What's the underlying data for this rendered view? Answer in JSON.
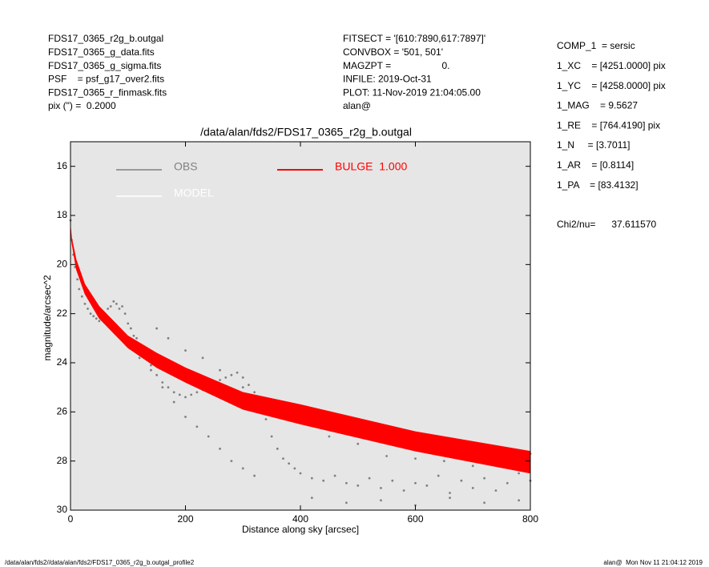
{
  "header_left": [
    "FDS17_0365_r2g_b.outgal",
    "FDS17_0365_g_data.fits",
    "FDS17_0365_g_sigma.fits",
    "PSF    = psf_g17_over2.fits",
    "FDS17_0365_r_finmask.fits",
    "pix (\") =  0.2000"
  ],
  "header_mid": [
    "FITSECT = '[610:7890,617:7897]'",
    "CONVBOX = '501, 501'",
    "MAGZPT =                   0.",
    "INFILE: 2019-Oct-31",
    "PLOT: 11-Nov-2019 21:04:05.00",
    "alan@"
  ],
  "params": [
    "COMP_1  = sersic",
    "1_XC    = [4251.0000] pix",
    "1_YC    = [4258.0000] pix",
    "1_MAG    = 9.5627",
    "1_RE    = [764.4190] pix",
    "1_N     = [3.7011]",
    "1_AR    = [0.8114]",
    "1_PA    = [83.4132]"
  ],
  "chi": "Chi2/nu=      37.611570",
  "footer_left": "/data/alan/fds2//data/alan/fds2/FDS17_0365_r2g_b.outgal_profile2",
  "footer_right": "alan@  Mon Nov 11 21:04:12 2019",
  "chart_data": {
    "type": "scatter",
    "title": "/data/alan/fds2/FDS17_0365_r2g_b.outgal",
    "xlabel": "Distance along sky [arcsec]",
    "ylabel": "magnitude/arcsec^2",
    "xlim": [
      0,
      800
    ],
    "xticks": [
      0,
      200,
      400,
      600,
      800
    ],
    "ylim": [
      30,
      15
    ],
    "yticks": [
      16,
      18,
      20,
      22,
      24,
      26,
      28,
      30
    ],
    "series": [
      {
        "name": "OBS",
        "color": "#808080",
        "x": [
          0,
          2,
          5,
          8,
          12,
          15,
          20,
          25,
          30,
          35,
          40,
          45,
          50,
          55,
          60,
          65,
          70,
          75,
          80,
          85,
          90,
          95,
          100,
          105,
          110,
          115,
          120,
          125,
          130,
          140,
          150,
          160,
          170,
          180,
          190,
          200,
          210,
          220,
          230,
          240,
          250,
          260,
          270,
          280,
          290,
          300,
          310,
          320,
          330,
          340,
          350,
          360,
          370,
          380,
          390,
          400,
          420,
          440,
          460,
          480,
          500,
          520,
          540,
          560,
          580,
          600,
          620,
          640,
          660,
          680,
          700,
          720,
          740,
          760,
          780,
          800,
          100,
          120,
          140,
          160,
          180,
          200,
          220,
          240,
          260,
          280,
          300,
          320,
          150,
          170,
          200,
          230,
          260,
          300,
          350,
          400,
          450,
          500,
          550,
          600,
          650,
          700,
          750,
          800,
          420,
          480,
          540,
          600,
          660,
          720,
          780
        ],
        "values": [
          18.2,
          19.0,
          19.6,
          20.1,
          20.6,
          21.0,
          21.3,
          21.6,
          21.8,
          22.0,
          22.1,
          22.2,
          22.3,
          22.1,
          22.0,
          21.8,
          21.7,
          21.5,
          21.6,
          21.8,
          21.7,
          22.0,
          22.4,
          22.6,
          22.9,
          23.0,
          23.3,
          23.6,
          23.8,
          24.1,
          24.5,
          24.8,
          25.0,
          25.2,
          25.3,
          25.4,
          25.3,
          25.2,
          25.1,
          25.0,
          24.9,
          24.7,
          24.6,
          24.5,
          24.4,
          24.6,
          24.9,
          25.2,
          25.6,
          26.3,
          27.0,
          27.5,
          27.9,
          28.1,
          28.3,
          28.5,
          28.7,
          28.8,
          28.6,
          28.9,
          29.0,
          28.7,
          29.1,
          28.8,
          29.2,
          28.9,
          29.0,
          28.6,
          29.3,
          28.8,
          29.1,
          28.7,
          29.2,
          28.9,
          28.5,
          28.8,
          23.2,
          23.8,
          24.3,
          25.0,
          25.6,
          26.2,
          26.6,
          27.0,
          27.5,
          28.0,
          28.3,
          28.6,
          22.6,
          23.0,
          23.5,
          23.8,
          24.3,
          25.0,
          25.5,
          26.2,
          27.0,
          27.3,
          27.8,
          27.9,
          28.0,
          28.2,
          27.9,
          27.7,
          29.5,
          29.7,
          29.6,
          29.8,
          29.5,
          29.7,
          29.6
        ]
      },
      {
        "name": "MODEL",
        "color": "#ffffff"
      },
      {
        "name": "BULGE  1.000",
        "color": "#ff0000",
        "x": [
          0,
          2,
          10,
          25,
          50,
          100,
          150,
          200,
          300,
          400,
          600,
          800
        ],
        "low": [
          18.4,
          18.9,
          19.8,
          20.8,
          21.7,
          22.9,
          23.6,
          24.2,
          25.2,
          25.7,
          26.8,
          27.6
        ],
        "high": [
          18.6,
          19.1,
          20.2,
          21.2,
          22.2,
          23.4,
          24.2,
          24.8,
          25.9,
          26.5,
          27.6,
          28.5
        ]
      }
    ]
  }
}
